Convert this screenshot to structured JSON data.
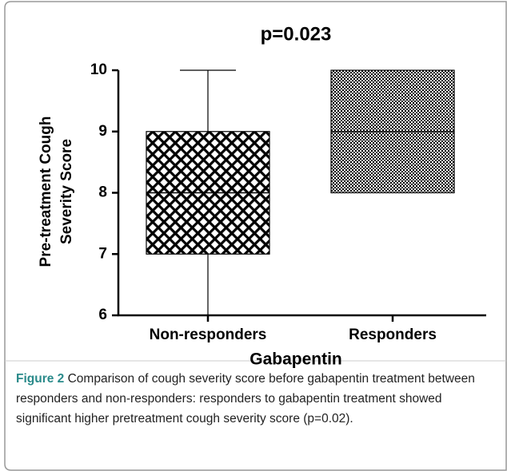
{
  "chart_data": {
    "type": "box",
    "title": "p=0.023",
    "ylabel": [
      "Pre-treatment Cough",
      "Severity Score"
    ],
    "xlabel": "Gabapentin",
    "categories": [
      "Non-responders",
      "Responders"
    ],
    "boxes": [
      {
        "min": 6,
        "q1": 7,
        "median": 8,
        "q3": 9,
        "max": 10
      },
      {
        "min": 8,
        "q1": 8,
        "median": 9,
        "q3": 10,
        "max": 10
      }
    ],
    "color": "#000000",
    "ylim": [
      6,
      10
    ],
    "yticks": [
      6,
      7,
      8,
      9,
      10
    ]
  },
  "caption": {
    "label": "Figure 2",
    "text": "Comparison of cough severity score before gabapentin treatment between responders and non-responders: responders to gabapentin treatment showed significant higher pretreatment cough severity score (p=0.02)."
  }
}
